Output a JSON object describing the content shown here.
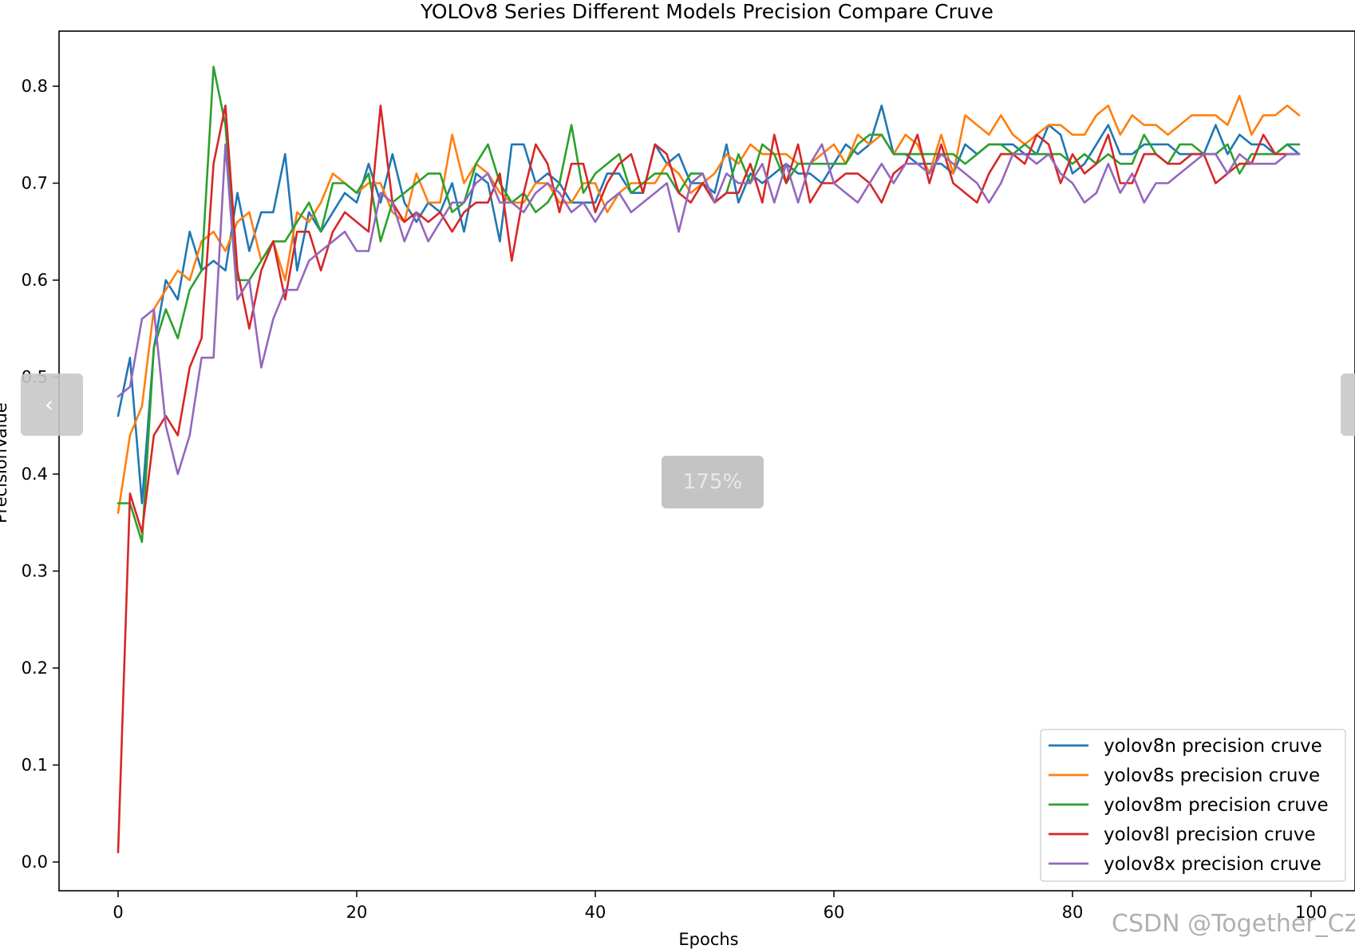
{
  "overlay": {
    "zoom_label": "175%",
    "watermark": "CSDN @Together_CZ",
    "prev_icon": "chevron-left-icon",
    "next_icon": "chevron-right-icon"
  },
  "chart_data": {
    "type": "line",
    "title": "YOLOv8 Series Different Models Precision Compare Cruve",
    "xlabel": "Epochs",
    "ylabel": "PrecisionValue",
    "xlim": [
      -5,
      103
    ],
    "ylim": [
      -0.03,
      0.86
    ],
    "xticks": [
      0,
      20,
      40,
      60,
      80,
      100
    ],
    "xtick_labels": [
      "0",
      "20",
      "40",
      "60",
      "80",
      "100"
    ],
    "yticks": [
      0.0,
      0.1,
      0.2,
      0.3,
      0.4,
      0.5,
      0.6,
      0.7,
      0.8
    ],
    "ytick_labels": [
      "0.0",
      "0.1",
      "0.2",
      "0.3",
      "0.4",
      "0.5",
      "0.6",
      "0.7",
      "0.8"
    ],
    "grid": false,
    "legend_position": "lower-right",
    "series": [
      {
        "name": "yolov8n precision cruve",
        "color": "#1f77b4",
        "values": [
          0.46,
          0.52,
          0.37,
          0.53,
          0.6,
          0.58,
          0.65,
          0.61,
          0.62,
          0.61,
          0.69,
          0.63,
          0.67,
          0.67,
          0.73,
          0.61,
          0.67,
          0.65,
          0.67,
          0.69,
          0.68,
          0.72,
          0.68,
          0.73,
          0.68,
          0.66,
          0.68,
          0.67,
          0.7,
          0.65,
          0.71,
          0.7,
          0.64,
          0.74,
          0.74,
          0.7,
          0.71,
          0.7,
          0.68,
          0.68,
          0.68,
          0.71,
          0.71,
          0.69,
          0.69,
          0.74,
          0.72,
          0.73,
          0.7,
          0.7,
          0.69,
          0.74,
          0.68,
          0.71,
          0.7,
          0.71,
          0.72,
          0.71,
          0.71,
          0.7,
          0.72,
          0.74,
          0.73,
          0.74,
          0.78,
          0.73,
          0.73,
          0.72,
          0.72,
          0.72,
          0.71,
          0.74,
          0.73,
          0.74,
          0.74,
          0.74,
          0.73,
          0.73,
          0.76,
          0.75,
          0.71,
          0.72,
          0.74,
          0.76,
          0.73,
          0.73,
          0.74,
          0.74,
          0.74,
          0.73,
          0.73,
          0.73,
          0.76,
          0.73,
          0.75,
          0.74,
          0.74,
          0.73,
          0.74,
          0.73
        ]
      },
      {
        "name": "yolov8s precision cruve",
        "color": "#ff7f0e",
        "values": [
          0.36,
          0.44,
          0.47,
          0.57,
          0.59,
          0.61,
          0.6,
          0.64,
          0.65,
          0.63,
          0.66,
          0.67,
          0.62,
          0.64,
          0.6,
          0.67,
          0.66,
          0.68,
          0.71,
          0.7,
          0.69,
          0.7,
          0.7,
          0.67,
          0.66,
          0.71,
          0.68,
          0.68,
          0.75,
          0.7,
          0.72,
          0.71,
          0.69,
          0.68,
          0.68,
          0.7,
          0.7,
          0.68,
          0.68,
          0.7,
          0.7,
          0.67,
          0.69,
          0.7,
          0.7,
          0.7,
          0.72,
          0.71,
          0.69,
          0.7,
          0.71,
          0.73,
          0.72,
          0.74,
          0.73,
          0.73,
          0.73,
          0.72,
          0.72,
          0.73,
          0.74,
          0.72,
          0.75,
          0.74,
          0.75,
          0.73,
          0.75,
          0.74,
          0.71,
          0.75,
          0.71,
          0.77,
          0.76,
          0.75,
          0.77,
          0.75,
          0.74,
          0.75,
          0.76,
          0.76,
          0.75,
          0.75,
          0.77,
          0.78,
          0.75,
          0.77,
          0.76,
          0.76,
          0.75,
          0.76,
          0.77,
          0.77,
          0.77,
          0.76,
          0.79,
          0.75,
          0.77,
          0.77,
          0.78,
          0.77
        ]
      },
      {
        "name": "yolov8m precision cruve",
        "color": "#2ca02c",
        "values": [
          0.37,
          0.37,
          0.33,
          0.53,
          0.57,
          0.54,
          0.59,
          0.61,
          0.82,
          0.76,
          0.6,
          0.6,
          0.62,
          0.64,
          0.64,
          0.66,
          0.68,
          0.65,
          0.7,
          0.7,
          0.69,
          0.71,
          0.64,
          0.68,
          0.69,
          0.7,
          0.71,
          0.71,
          0.67,
          0.68,
          0.72,
          0.74,
          0.7,
          0.68,
          0.69,
          0.67,
          0.68,
          0.7,
          0.76,
          0.69,
          0.71,
          0.72,
          0.73,
          0.69,
          0.7,
          0.71,
          0.71,
          0.69,
          0.71,
          0.71,
          0.68,
          0.69,
          0.73,
          0.7,
          0.74,
          0.73,
          0.7,
          0.72,
          0.72,
          0.72,
          0.72,
          0.72,
          0.74,
          0.75,
          0.75,
          0.73,
          0.73,
          0.73,
          0.73,
          0.73,
          0.73,
          0.72,
          0.73,
          0.74,
          0.74,
          0.73,
          0.74,
          0.73,
          0.73,
          0.73,
          0.72,
          0.73,
          0.72,
          0.73,
          0.72,
          0.72,
          0.75,
          0.73,
          0.72,
          0.74,
          0.74,
          0.73,
          0.73,
          0.74,
          0.71,
          0.73,
          0.73,
          0.73,
          0.74,
          0.74
        ]
      },
      {
        "name": "yolov8l precision cruve",
        "color": "#d62728",
        "values": [
          0.01,
          0.38,
          0.34,
          0.44,
          0.46,
          0.44,
          0.51,
          0.54,
          0.72,
          0.78,
          0.61,
          0.55,
          0.61,
          0.64,
          0.58,
          0.65,
          0.65,
          0.61,
          0.65,
          0.67,
          0.66,
          0.65,
          0.78,
          0.68,
          0.66,
          0.67,
          0.66,
          0.67,
          0.65,
          0.67,
          0.68,
          0.68,
          0.71,
          0.62,
          0.69,
          0.74,
          0.72,
          0.67,
          0.72,
          0.72,
          0.67,
          0.7,
          0.72,
          0.73,
          0.69,
          0.74,
          0.73,
          0.69,
          0.68,
          0.7,
          0.68,
          0.69,
          0.69,
          0.72,
          0.68,
          0.75,
          0.7,
          0.74,
          0.68,
          0.7,
          0.7,
          0.71,
          0.71,
          0.7,
          0.68,
          0.71,
          0.72,
          0.75,
          0.7,
          0.74,
          0.7,
          0.69,
          0.68,
          0.71,
          0.73,
          0.73,
          0.72,
          0.75,
          0.74,
          0.7,
          0.73,
          0.71,
          0.72,
          0.75,
          0.7,
          0.7,
          0.73,
          0.73,
          0.72,
          0.72,
          0.73,
          0.73,
          0.7,
          0.71,
          0.72,
          0.72,
          0.75,
          0.73,
          0.73,
          0.73
        ]
      },
      {
        "name": "yolov8x precision cruve",
        "color": "#9467bd",
        "values": [
          0.48,
          0.49,
          0.56,
          0.57,
          0.45,
          0.4,
          0.44,
          0.52,
          0.52,
          0.74,
          0.58,
          0.6,
          0.51,
          0.56,
          0.59,
          0.59,
          0.62,
          0.63,
          0.64,
          0.65,
          0.63,
          0.63,
          0.69,
          0.68,
          0.64,
          0.67,
          0.64,
          0.66,
          0.68,
          0.68,
          0.7,
          0.71,
          0.68,
          0.68,
          0.67,
          0.69,
          0.7,
          0.69,
          0.67,
          0.68,
          0.66,
          0.68,
          0.69,
          0.67,
          0.68,
          0.69,
          0.7,
          0.65,
          0.7,
          0.71,
          0.68,
          0.71,
          0.7,
          0.7,
          0.72,
          0.68,
          0.72,
          0.68,
          0.72,
          0.74,
          0.7,
          0.69,
          0.68,
          0.7,
          0.72,
          0.7,
          0.72,
          0.72,
          0.71,
          0.73,
          0.72,
          0.71,
          0.7,
          0.68,
          0.7,
          0.73,
          0.73,
          0.72,
          0.73,
          0.71,
          0.7,
          0.68,
          0.69,
          0.72,
          0.69,
          0.71,
          0.68,
          0.7,
          0.7,
          0.71,
          0.72,
          0.73,
          0.73,
          0.71,
          0.73,
          0.72,
          0.72,
          0.72,
          0.73,
          0.73
        ]
      }
    ]
  }
}
